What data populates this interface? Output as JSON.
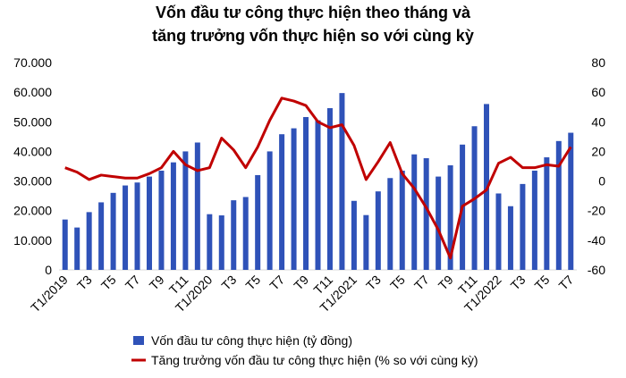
{
  "chart_data": {
    "type": "bar-line",
    "title": [
      "Vốn đầu tư công thực hiện theo tháng và",
      "tăng trưởng vốn thực hiện so với cùng kỳ"
    ],
    "categories": [
      "T1/2019",
      null,
      "T3",
      null,
      "T5",
      null,
      "T7",
      null,
      "T9",
      null,
      "T11",
      null,
      "T1/2020",
      null,
      "T3",
      null,
      "T5",
      null,
      "T7",
      null,
      "T9",
      null,
      "T11",
      null,
      "T1/2021",
      null,
      "T3",
      null,
      "T5",
      null,
      "T7",
      null,
      "T9",
      null,
      "T11",
      null,
      "T1/2022",
      null,
      "T3",
      null,
      "T5",
      null,
      "T7"
    ],
    "series": [
      {
        "name": "Vốn đầu tư công thực hiện (tỷ đồng)",
        "color": "#2f52b8",
        "type": "bar",
        "values": [
          17000,
          14300,
          19500,
          22800,
          26000,
          28500,
          29500,
          31500,
          33500,
          36300,
          40000,
          43000,
          18800,
          18400,
          23500,
          24600,
          32000,
          40000,
          45800,
          47800,
          51600,
          50500,
          54600,
          59700,
          23300,
          18500,
          26500,
          31000,
          33500,
          39000,
          37700,
          31500,
          35300,
          42300,
          48500,
          56000,
          25800,
          21500,
          29000,
          33500,
          38000,
          43500,
          46300
        ]
      },
      {
        "name": "Tăng trưởng vốn đầu tư công thực hiện (% so với cùng kỳ)",
        "color": "#c00000",
        "type": "line",
        "axis": "y2",
        "values": [
          9,
          6,
          1,
          4,
          3,
          2,
          2,
          5,
          9,
          20,
          11,
          7,
          9,
          29,
          21,
          9,
          23,
          41,
          56,
          54,
          51,
          40,
          36,
          38,
          24,
          1,
          13,
          26,
          5,
          -5,
          -18,
          -33,
          -52,
          -17,
          -12,
          -6,
          12,
          16,
          9,
          9,
          11,
          10,
          23
        ]
      }
    ],
    "ylim": [
      0,
      70000
    ],
    "yticks": [
      {
        "value": 0,
        "label": "0"
      },
      {
        "value": 10000,
        "label": "10.000"
      },
      {
        "value": 20000,
        "label": "20.000"
      },
      {
        "value": 30000,
        "label": "30.000"
      },
      {
        "value": 40000,
        "label": "40.000"
      },
      {
        "value": 50000,
        "label": "50.000"
      },
      {
        "value": 60000,
        "label": "60.000"
      },
      {
        "value": 70000,
        "label": "70.000"
      }
    ],
    "y2lim": [
      -60,
      80
    ],
    "y2ticks": [
      -60,
      -40,
      -20,
      0,
      20,
      40,
      60,
      80
    ],
    "grid": false
  }
}
